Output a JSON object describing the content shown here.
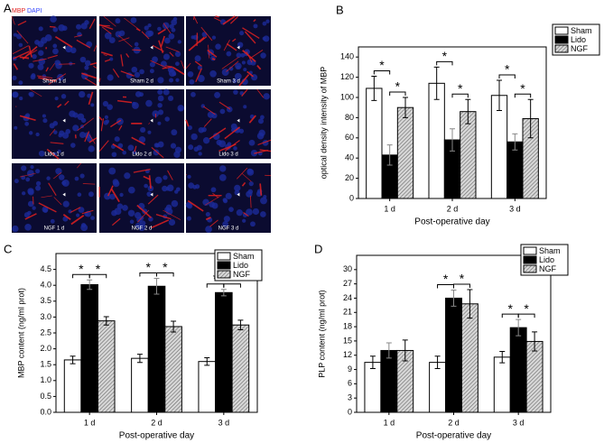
{
  "figure": {
    "panel_labels": [
      "A",
      "B",
      "C",
      "D"
    ],
    "microscopy": {
      "stains": [
        "MBP",
        "DAPI"
      ],
      "stain_colors": [
        "#e02020",
        "#3040ff"
      ],
      "images": [
        "Sham 1 d",
        "Sham 2 d",
        "Sham 3 d",
        "Lido 1 d",
        "Lido 2 d",
        "Lido 3 d",
        "NGF 1 d",
        "NGF 2 d",
        "NGF 3 d"
      ]
    }
  },
  "chart_data": [
    {
      "type": "bar",
      "x_label": "Post-operative day",
      "y_label": "optical density intensity of MBP",
      "categories": [
        "1 d",
        "2 d",
        "3 d"
      ],
      "series": [
        {
          "name": "Sham",
          "color": "#ffffff",
          "values": [
            109,
            114,
            102
          ],
          "errors": [
            12,
            16,
            15
          ]
        },
        {
          "name": "Lido",
          "color": "#000000",
          "values": [
            43,
            58,
            56
          ],
          "errors": [
            10,
            11,
            8
          ]
        },
        {
          "name": "NGF",
          "color": "hatch",
          "values": [
            90,
            86,
            79
          ],
          "errors": [
            10,
            12,
            19
          ]
        }
      ],
      "ylim": [
        0,
        150
      ],
      "yticks": [
        0,
        20,
        40,
        60,
        80,
        100,
        120,
        140
      ],
      "significance": [
        [
          "*",
          "*"
        ],
        [
          "*",
          "*"
        ],
        [
          "*",
          "*"
        ]
      ],
      "legend": "upper right outside"
    },
    {
      "type": "bar",
      "x_label": "Post-operative day",
      "y_label": "MBP content (ng/ml prot)",
      "categories": [
        "1 d",
        "2 d",
        "3 d"
      ],
      "series": [
        {
          "name": "Sham",
          "color": "#ffffff",
          "values": [
            1.65,
            1.7,
            1.6
          ],
          "errors": [
            0.12,
            0.13,
            0.12
          ]
        },
        {
          "name": "Lido",
          "color": "#000000",
          "values": [
            4.02,
            3.97,
            3.77
          ],
          "errors": [
            0.15,
            0.25,
            0.1
          ]
        },
        {
          "name": "NGF",
          "color": "hatch",
          "values": [
            2.88,
            2.7,
            2.75
          ],
          "errors": [
            0.13,
            0.17,
            0.15
          ]
        }
      ],
      "ylim": [
        0,
        5
      ],
      "yticks": [
        {
          "value": 0,
          "label": "0.0"
        },
        0.5,
        {
          "value": 1,
          "label": "1.0"
        },
        1.5,
        {
          "value": 2,
          "label": "2.0"
        },
        2.5,
        {
          "value": 3,
          "label": "3.0"
        },
        3.5,
        {
          "value": 4,
          "label": "4.0"
        },
        4.5
      ],
      "significance": [
        [
          "*",
          "*"
        ],
        [
          "*",
          "*"
        ],
        [
          "*",
          "*"
        ]
      ],
      "legend": "upper right"
    },
    {
      "type": "bar",
      "x_label": "Post-operative day",
      "y_label": "PLP content (ng/ml prot)",
      "categories": [
        "1 d",
        "2 d",
        "3 d"
      ],
      "series": [
        {
          "name": "Sham",
          "color": "#ffffff",
          "values": [
            10.5,
            10.5,
            11.6
          ],
          "errors": [
            1.3,
            1.3,
            1.2
          ]
        },
        {
          "name": "Lido",
          "color": "#000000",
          "values": [
            13,
            24,
            17.8
          ],
          "errors": [
            1.6,
            1.7,
            1.7
          ]
        },
        {
          "name": "NGF",
          "color": "hatch",
          "values": [
            13,
            22.8,
            14.9
          ],
          "errors": [
            2.2,
            3,
            2
          ]
        }
      ],
      "ylim": [
        0,
        33
      ],
      "yticks": [
        0,
        3,
        6,
        9,
        12,
        15,
        18,
        21,
        24,
        27,
        30
      ],
      "significance": [
        [],
        [
          "*",
          "*"
        ],
        [
          "*",
          "*"
        ]
      ],
      "legend": "upper right"
    }
  ]
}
